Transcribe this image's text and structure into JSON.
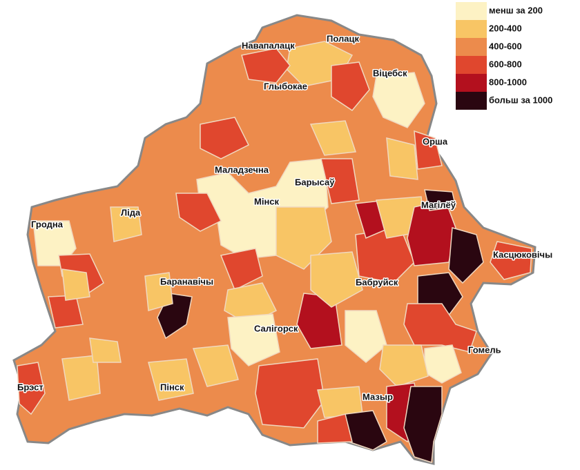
{
  "legend": {
    "items": [
      {
        "label": "менш за 200",
        "color": "#fdf2c4"
      },
      {
        "label": "200-400",
        "color": "#f8c565"
      },
      {
        "label": "400-600",
        "color": "#ec8b4c"
      },
      {
        "label": "600-800",
        "color": "#e0472e"
      },
      {
        "label": "800-1000",
        "color": "#b3101e"
      },
      {
        "label": "больш за 1000",
        "color": "#2a0610"
      }
    ]
  },
  "cities": [
    "Навапалацк",
    "Полацк",
    "Віцебск",
    "Глыбокае",
    "Орша",
    "Маладзечна",
    "Барысаў",
    "Мінск",
    "Магілёў",
    "Гродна",
    "Ліда",
    "Касцюковічы",
    "Баранавічы",
    "Бабруйск",
    "Салігорск",
    "Гомель",
    "Брэст",
    "Пінск",
    "Мазыр"
  ]
}
